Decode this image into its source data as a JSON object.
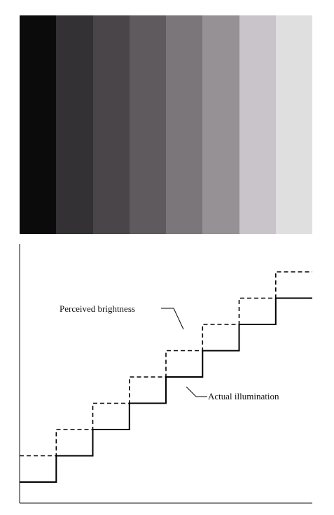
{
  "bands": [
    {
      "name": "band-1",
      "color": "#0b0b0b"
    },
    {
      "name": "band-2",
      "color": "#333133"
    },
    {
      "name": "band-3",
      "color": "#4a4548"
    },
    {
      "name": "band-4",
      "color": "#5e5a5d"
    },
    {
      "name": "band-5",
      "color": "#7a7679"
    },
    {
      "name": "band-6",
      "color": "#969194"
    },
    {
      "name": "band-7",
      "color": "#c8c4c9"
    },
    {
      "name": "band-8",
      "color": "#e0dfe0"
    }
  ],
  "labels": {
    "perceived": "Perceived brightness",
    "actual": "Actual illumination"
  },
  "chart_data": {
    "type": "line",
    "x_steps": 8,
    "series": [
      {
        "name": "Actual illumination",
        "style": "solid",
        "values": [
          1,
          2,
          3,
          4,
          5,
          6,
          7,
          8
        ]
      },
      {
        "name": "Perceived brightness",
        "style": "dashed",
        "values": [
          2,
          3,
          4,
          5,
          6,
          7,
          8,
          9
        ]
      }
    ]
  }
}
